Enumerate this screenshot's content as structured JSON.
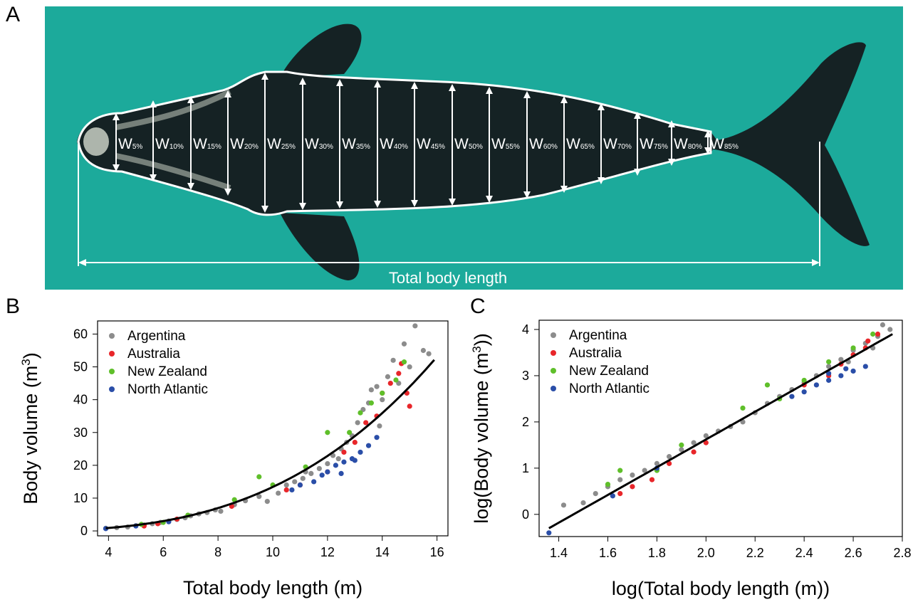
{
  "panels": {
    "a": "A",
    "b": "B",
    "c": "C"
  },
  "photo": {
    "width_labels": [
      {
        "base": "W",
        "sub": "5%"
      },
      {
        "base": "W",
        "sub": "10%"
      },
      {
        "base": "W",
        "sub": "15%"
      },
      {
        "base": "W",
        "sub": "20%"
      },
      {
        "base": "W",
        "sub": "25%"
      },
      {
        "base": "W",
        "sub": "30%"
      },
      {
        "base": "W",
        "sub": "35%"
      },
      {
        "base": "W",
        "sub": "40%"
      },
      {
        "base": "W",
        "sub": "45%"
      },
      {
        "base": "W",
        "sub": "50%"
      },
      {
        "base": "W",
        "sub": "55%"
      },
      {
        "base": "W",
        "sub": "60%"
      },
      {
        "base": "W",
        "sub": "65%"
      },
      {
        "base": "W",
        "sub": "70%"
      },
      {
        "base": "W",
        "sub": "75%"
      },
      {
        "base": "W",
        "sub": "80%"
      },
      {
        "base": "W",
        "sub": "85%"
      }
    ],
    "length_label": "Total body length",
    "colors": {
      "water": "#1fb0a2",
      "whale": "#152224",
      "outline": "#ffffff"
    }
  },
  "legend_colors": {
    "Argentina": "#8c8c8c",
    "Australia": "#e8262a",
    "New Zealand": "#5fbf2a",
    "North Atlantic": "#2a4ea8"
  },
  "chart_data": [
    {
      "type": "scatter",
      "panel": "B",
      "xlabel": "Total body length (m)",
      "ylabel_main": "Body volume (m",
      "ylabel_sup": "3",
      "ylabel_end": ")",
      "xlim": [
        3.6,
        16.4
      ],
      "ylim": [
        -1.5,
        64
      ],
      "xticks": [
        4,
        6,
        8,
        10,
        12,
        14,
        16
      ],
      "yticks": [
        0,
        10,
        20,
        30,
        40,
        50,
        60
      ],
      "legend": [
        "Argentina",
        "Australia",
        "New Zealand",
        "North Atlantic"
      ],
      "legend_position": "top-left",
      "fit_line": {
        "model": "power",
        "a": 0.01574,
        "b": 2.93,
        "x_range": [
          3.9,
          15.9
        ]
      },
      "series": [
        {
          "name": "Argentina",
          "points": [
            [
              3.9,
              0.8
            ],
            [
              4.3,
              1.0
            ],
            [
              4.7,
              1.2
            ],
            [
              5.0,
              1.6
            ],
            [
              5.3,
              1.8
            ],
            [
              5.6,
              2.2
            ],
            [
              5.9,
              2.6
            ],
            [
              6.2,
              3.0
            ],
            [
              6.5,
              3.5
            ],
            [
              6.8,
              4.0
            ],
            [
              7.0,
              4.6
            ],
            [
              7.3,
              5.2
            ],
            [
              7.6,
              5.6
            ],
            [
              7.9,
              6.4
            ],
            [
              8.1,
              6.0
            ],
            [
              8.6,
              8.0
            ],
            [
              9.0,
              9.2
            ],
            [
              9.5,
              10.5
            ],
            [
              9.8,
              9.0
            ],
            [
              10.2,
              11.5
            ],
            [
              10.5,
              14.0
            ],
            [
              10.8,
              15.0
            ],
            [
              11.1,
              16.0
            ],
            [
              11.4,
              17.5
            ],
            [
              11.7,
              19.0
            ],
            [
              12.0,
              20.5
            ],
            [
              12.2,
              23.0
            ],
            [
              12.5,
              25.0
            ],
            [
              12.7,
              27.0
            ],
            [
              12.9,
              29.0
            ],
            [
              13.1,
              33.0
            ],
            [
              13.3,
              37.0
            ],
            [
              13.5,
              39.0
            ],
            [
              13.6,
              43.0
            ],
            [
              13.8,
              44.0
            ],
            [
              14.0,
              40.0
            ],
            [
              14.2,
              47.0
            ],
            [
              14.4,
              52.0
            ],
            [
              14.6,
              45.0
            ],
            [
              14.8,
              57.0
            ],
            [
              15.0,
              50.0
            ],
            [
              15.2,
              62.5
            ],
            [
              15.5,
              55.0
            ],
            [
              15.7,
              54.0
            ],
            [
              13.9,
              32.0
            ],
            [
              12.4,
              22.0
            ],
            [
              11.2,
              18.0
            ]
          ]
        },
        {
          "name": "Australia",
          "points": [
            [
              5.3,
              1.5
            ],
            [
              5.8,
              2.2
            ],
            [
              6.5,
              3.6
            ],
            [
              8.5,
              7.5
            ],
            [
              10.5,
              12.5
            ],
            [
              11.0,
              14.0
            ],
            [
              12.0,
              18.0
            ],
            [
              12.6,
              24.0
            ],
            [
              13.0,
              27.0
            ],
            [
              13.4,
              33.0
            ],
            [
              13.8,
              35.0
            ],
            [
              14.0,
              42.0
            ],
            [
              14.3,
              45.0
            ],
            [
              14.6,
              48.0
            ],
            [
              14.9,
              42.0
            ],
            [
              15.0,
              38.0
            ],
            [
              14.7,
              51.0
            ]
          ]
        },
        {
          "name": "New Zealand",
          "points": [
            [
              5.2,
              2.0
            ],
            [
              6.0,
              2.6
            ],
            [
              6.9,
              4.8
            ],
            [
              8.6,
              9.5
            ],
            [
              9.5,
              16.5
            ],
            [
              10.0,
              14.0
            ],
            [
              11.2,
              19.5
            ],
            [
              12.0,
              30.0
            ],
            [
              12.8,
              30.0
            ],
            [
              13.2,
              36.0
            ],
            [
              13.6,
              39.0
            ],
            [
              14.5,
              46.0
            ],
            [
              14.8,
              51.5
            ],
            [
              14.0,
              42.0
            ]
          ]
        },
        {
          "name": "North Atlantic",
          "points": [
            [
              3.9,
              0.7
            ],
            [
              5.0,
              1.5
            ],
            [
              6.2,
              2.8
            ],
            [
              10.7,
              12.5
            ],
            [
              11.0,
              14.0
            ],
            [
              11.5,
              15.0
            ],
            [
              11.8,
              17.0
            ],
            [
              12.0,
              18.0
            ],
            [
              12.3,
              20.0
            ],
            [
              12.6,
              21.0
            ],
            [
              12.9,
              22.0
            ],
            [
              13.2,
              24.0
            ],
            [
              13.5,
              26.0
            ],
            [
              13.8,
              28.5
            ],
            [
              12.5,
              17.5
            ],
            [
              13.0,
              21.5
            ]
          ]
        }
      ]
    },
    {
      "type": "scatter",
      "panel": "C",
      "xlabel": "log(Total body length (m))",
      "ylabel_main": "log(Body volume (m",
      "ylabel_sup": "3",
      "ylabel_end": "))",
      "xlim": [
        1.32,
        2.8
      ],
      "ylim": [
        -0.48,
        4.2
      ],
      "xticks": [
        1.4,
        1.6,
        1.8,
        2.0,
        2.2,
        2.4,
        2.6,
        2.8
      ],
      "yticks": [
        0,
        1,
        2,
        3,
        4
      ],
      "legend": [
        "Argentina",
        "Australia",
        "New Zealand",
        "North Atlantic"
      ],
      "legend_position": "top-left",
      "fit_line": {
        "model": "linear",
        "slope": 3.0,
        "intercept": -4.38,
        "x_range": [
          1.36,
          2.76
        ]
      },
      "series": [
        {
          "name": "Argentina",
          "points": [
            [
              1.42,
              0.2
            ],
            [
              1.5,
              0.25
            ],
            [
              1.55,
              0.45
            ],
            [
              1.6,
              0.6
            ],
            [
              1.65,
              0.75
            ],
            [
              1.7,
              0.85
            ],
            [
              1.75,
              0.95
            ],
            [
              1.8,
              1.1
            ],
            [
              1.85,
              1.25
            ],
            [
              1.9,
              1.4
            ],
            [
              1.95,
              1.55
            ],
            [
              2.0,
              1.7
            ],
            [
              2.05,
              1.8
            ],
            [
              2.1,
              1.9
            ],
            [
              2.15,
              2.0
            ],
            [
              2.2,
              2.2
            ],
            [
              2.25,
              2.4
            ],
            [
              2.3,
              2.55
            ],
            [
              2.35,
              2.7
            ],
            [
              2.4,
              2.85
            ],
            [
              2.45,
              3.0
            ],
            [
              2.5,
              3.2
            ],
            [
              2.55,
              3.35
            ],
            [
              2.6,
              3.55
            ],
            [
              2.65,
              3.7
            ],
            [
              2.7,
              3.85
            ],
            [
              2.72,
              4.1
            ],
            [
              2.75,
              4.0
            ],
            [
              2.68,
              3.6
            ],
            [
              2.58,
              3.3
            ]
          ]
        },
        {
          "name": "Australia",
          "points": [
            [
              1.65,
              0.45
            ],
            [
              1.7,
              0.6
            ],
            [
              1.78,
              0.75
            ],
            [
              1.85,
              1.1
            ],
            [
              1.95,
              1.35
            ],
            [
              2.0,
              1.55
            ],
            [
              2.4,
              2.8
            ],
            [
              2.5,
              3.0
            ],
            [
              2.55,
              3.25
            ],
            [
              2.6,
              3.45
            ],
            [
              2.65,
              3.6
            ],
            [
              2.7,
              3.9
            ],
            [
              2.66,
              3.75
            ]
          ]
        },
        {
          "name": "New Zealand",
          "points": [
            [
              1.65,
              0.95
            ],
            [
              1.8,
              0.95
            ],
            [
              1.9,
              1.5
            ],
            [
              2.15,
              2.3
            ],
            [
              2.25,
              2.8
            ],
            [
              2.3,
              2.5
            ],
            [
              2.4,
              2.9
            ],
            [
              2.5,
              3.3
            ],
            [
              2.6,
              3.6
            ],
            [
              2.68,
              3.9
            ],
            [
              1.6,
              0.65
            ]
          ]
        },
        {
          "name": "North Atlantic",
          "points": [
            [
              1.36,
              -0.4
            ],
            [
              1.62,
              0.4
            ],
            [
              1.8,
              1.0
            ],
            [
              2.35,
              2.55
            ],
            [
              2.4,
              2.65
            ],
            [
              2.45,
              2.8
            ],
            [
              2.5,
              2.9
            ],
            [
              2.55,
              3.0
            ],
            [
              2.6,
              3.1
            ],
            [
              2.65,
              3.2
            ],
            [
              2.5,
              3.05
            ],
            [
              2.57,
              3.15
            ]
          ]
        }
      ]
    }
  ]
}
